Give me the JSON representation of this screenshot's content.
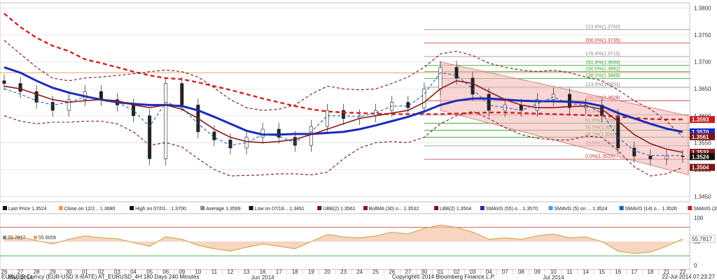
{
  "chart_data": {
    "type": "line",
    "price_axis": {
      "ylim": [
        1.344,
        1.381
      ],
      "ticks": [
        "1.3450",
        "1.3500",
        "1.3550",
        "1.3600",
        "1.3650",
        "1.3700",
        "1.3750",
        "1.3800"
      ]
    },
    "x_categories": [
      "26",
      "27",
      "28",
      "29",
      "30",
      "01",
      "02",
      "03",
      "04",
      "05",
      "06",
      "09",
      "10",
      "11",
      "12",
      "13",
      "16",
      "17",
      "18",
      "19",
      "20",
      "23",
      "24",
      "25",
      "26",
      "27",
      "30",
      "01",
      "02",
      "03",
      "04",
      "07",
      "08",
      "09",
      "10",
      "11",
      "14",
      "15",
      "16",
      "17",
      "18",
      "21",
      "22"
    ],
    "month_labels": [
      {
        "label": "May 2014",
        "at": "27"
      },
      {
        "label": "Jun 2014",
        "at": "16"
      },
      {
        "label": "Jul 2014",
        "at": "10"
      }
    ],
    "candles_close": [
      1.366,
      1.3645,
      1.3625,
      1.361,
      1.363,
      1.3645,
      1.363,
      1.362,
      1.36,
      1.352,
      1.366,
      1.362,
      1.357,
      1.3555,
      1.354,
      1.356,
      1.3575,
      1.356,
      1.3545,
      1.358,
      1.361,
      1.3595,
      1.36,
      1.361,
      1.3625,
      1.3615,
      1.365,
      1.369,
      1.367,
      1.364,
      1.361,
      1.362,
      1.361,
      1.363,
      1.364,
      1.3615,
      1.362,
      1.36,
      1.354,
      1.3525,
      1.352,
      1.3525,
      1.3524
    ],
    "series": [
      {
        "name": "SMAVG (200)",
        "color": "#d42020",
        "style": "dashed",
        "values": [
          1.379,
          1.3765,
          1.3745,
          1.373,
          1.372,
          1.3705,
          1.3698,
          1.369,
          1.3682,
          1.3675,
          1.367,
          1.3668,
          1.3662,
          1.3655,
          1.3648,
          1.364,
          1.3632,
          1.3625,
          1.3618,
          1.3612,
          1.3608,
          1.3606,
          1.3605,
          1.3604,
          1.3603,
          1.3603,
          1.3603,
          1.3603,
          1.3604,
          1.3605,
          1.3606,
          1.3606,
          1.3605,
          1.3604,
          1.3603,
          1.3602,
          1.3601,
          1.36,
          1.3598,
          1.3596,
          1.3594,
          1.3593,
          1.3593
        ]
      },
      {
        "name": "SMAVG (55)",
        "color": "#1a2bb8",
        "style": "solid",
        "values": [
          1.369,
          1.368,
          1.3665,
          1.3652,
          1.3643,
          1.3636,
          1.363,
          1.3625,
          1.3622,
          1.362,
          1.362,
          1.3618,
          1.361,
          1.3598,
          1.3585,
          1.3572,
          1.3565,
          1.3565,
          1.3566,
          1.3566,
          1.3568,
          1.357,
          1.3575,
          1.3582,
          1.359,
          1.3598,
          1.3608,
          1.362,
          1.3628,
          1.3632,
          1.3632,
          1.363,
          1.3628,
          1.3627,
          1.3627,
          1.3626,
          1.3624,
          1.3618,
          1.3605,
          1.3595,
          1.3585,
          1.3576,
          1.357
        ]
      },
      {
        "name": "BollMA (30)",
        "color": "#8a1a1a",
        "style": "solid",
        "values": [
          1.3655,
          1.365,
          1.364,
          1.363,
          1.3625,
          1.3628,
          1.363,
          1.3628,
          1.362,
          1.3615,
          1.362,
          1.3612,
          1.3595,
          1.3575,
          1.356,
          1.3552,
          1.355,
          1.3552,
          1.3556,
          1.3565,
          1.3575,
          1.3585,
          1.3595,
          1.36,
          1.3605,
          1.361,
          1.3625,
          1.365,
          1.3665,
          1.366,
          1.3645,
          1.363,
          1.362,
          1.3615,
          1.3615,
          1.3617,
          1.3618,
          1.3612,
          1.359,
          1.3565,
          1.3548,
          1.3538,
          1.3532
        ]
      },
      {
        "name": "SMAVG (14)",
        "color": "#2060b0",
        "style": "dashed",
        "values": [
          1.365,
          1.364,
          1.3628,
          1.362,
          1.3625,
          1.3635,
          1.3632,
          1.3625,
          1.361,
          1.358,
          1.3625,
          1.3615,
          1.3585,
          1.356,
          1.3545,
          1.355,
          1.3565,
          1.3562,
          1.355,
          1.357,
          1.36,
          1.36,
          1.3598,
          1.3605,
          1.3618,
          1.3618,
          1.364,
          1.368,
          1.3675,
          1.365,
          1.362,
          1.3615,
          1.361,
          1.3622,
          1.3635,
          1.3622,
          1.362,
          1.3605,
          1.356,
          1.3535,
          1.3526,
          1.3526,
          1.3526
        ]
      },
      {
        "name": "UBB(2)",
        "color": "#7a1515",
        "style": "dashed",
        "values": [
          1.374,
          1.3715,
          1.369,
          1.367,
          1.3665,
          1.367,
          1.3672,
          1.3675,
          1.3678,
          1.3682,
          1.3685,
          1.3682,
          1.3672,
          1.3652,
          1.363,
          1.3615,
          1.361,
          1.3612,
          1.362,
          1.364,
          1.3655,
          1.365,
          1.3648,
          1.365,
          1.366,
          1.3672,
          1.369,
          1.3715,
          1.372,
          1.3712,
          1.3698,
          1.369,
          1.3685,
          1.3682,
          1.3685,
          1.368,
          1.3672,
          1.3665,
          1.3648,
          1.3628,
          1.3612,
          1.359,
          1.3561
        ]
      },
      {
        "name": "LBB(2)",
        "color": "#7a1515",
        "style": "dashed",
        "values": [
          1.36,
          1.359,
          1.3585,
          1.3588,
          1.3588,
          1.359,
          1.359,
          1.3585,
          1.357,
          1.3545,
          1.355,
          1.3542,
          1.352,
          1.35,
          1.3488,
          1.3489,
          1.349,
          1.3492,
          1.3492,
          1.349,
          1.3495,
          1.352,
          1.354,
          1.355,
          1.3552,
          1.355,
          1.356,
          1.3585,
          1.36,
          1.3608,
          1.3595,
          1.3578,
          1.3565,
          1.3558,
          1.3555,
          1.3555,
          1.3562,
          1.356,
          1.3535,
          1.3505,
          1.3488,
          1.3492,
          1.3504
        ]
      }
    ],
    "channel": {
      "color": "#f4b5b5",
      "upper": [
        [
          1.37,
          "01"
        ],
        [
          1.36,
          "22"
        ]
      ],
      "lower": [
        [
          1.361,
          "01"
        ],
        [
          1.349,
          "22"
        ]
      ]
    },
    "fib_levels": [
      {
        "label": "223.6%(1.3760)",
        "value": 1.376,
        "color": "#888888"
      },
      {
        "label": "200.0%(1.3735)",
        "value": 1.3735,
        "color": "#c43030"
      },
      {
        "label": "176.4%(1.3710)",
        "value": 1.371,
        "color": "#888888"
      },
      {
        "label": "161.8%(1.3694)",
        "value": 1.3694,
        "color": "#2ca02c"
      },
      {
        "label": "150.0%(1.3682)",
        "value": 1.3682,
        "color": "#2ca02c"
      },
      {
        "label": "138.2%(1.3669)",
        "value": 1.3669,
        "color": "#2ca02c"
      },
      {
        "label": "123.6%(1.3653)",
        "value": 1.3653,
        "color": "#888888"
      },
      {
        "label": "100.0%(1.3628)",
        "value": 1.3628,
        "color": "#c43030"
      },
      {
        "label": "76.4%(1.3602)",
        "value": 1.3602,
        "color": "#888888"
      },
      {
        "label": "61.8%(1.3586)",
        "value": 1.3586,
        "color": "#2ca02c"
      },
      {
        "label": "50.0%(1.3573)",
        "value": 1.3573,
        "color": "#2ca02c"
      },
      {
        "label": "38.2%(1.3560)",
        "value": 1.356,
        "color": "#2ca02c"
      },
      {
        "label": "23.6%(1.3544)",
        "value": 1.3544,
        "color": "#888888"
      },
      {
        "label": "0.0%(1.3519)",
        "value": 1.3519,
        "color": "#c43030"
      }
    ],
    "orange_line": {
      "value": 1.368,
      "color": "#e8a060"
    },
    "price_badges": [
      {
        "label": "1.3593",
        "value": 1.3593,
        "color": "#c42020"
      },
      {
        "label": "1.3570",
        "value": 1.357,
        "color": "#1a2bb8"
      },
      {
        "label": "1.3561",
        "value": 1.3561,
        "color": "#7a1515"
      },
      {
        "label": "1.3532",
        "value": 1.3532,
        "color": "#8a1a1a"
      },
      {
        "label": "1.3524",
        "value": 1.3524,
        "color": "#111111"
      },
      {
        "label": "1.3504",
        "value": 1.3504,
        "color": "#7a1515"
      }
    ],
    "legend": [
      {
        "text": "Last Price  1.3524",
        "color": "#111111"
      },
      {
        "text": "Close on 12/2...  1.3680",
        "color": "#e8a060"
      },
      {
        "text": "High on 07/01...  1.3700",
        "color": "#111111"
      },
      {
        "text": "Average  1.3599",
        "color": "#888888"
      },
      {
        "text": "Low on 07/18...  1.3491",
        "color": "#111111"
      },
      {
        "text": "UBB(2)  1.3561",
        "color": "#7a1515"
      },
      {
        "text": "BollMA (30) o...  1.3532",
        "color": "#8a1a1a"
      },
      {
        "text": "LBB(2)  1.3504",
        "color": "#7a1515"
      },
      {
        "text": "SMAVG (55) o...  1.3570",
        "color": "#1a2bb8"
      },
      {
        "text": "SMAVG (5) on ...  1.3524",
        "color": "#4aa0e0"
      },
      {
        "text": "SMAVG (14) o...  1.3526",
        "color": "#2060b0"
      },
      {
        "text": "SMAVG (200) ...  1.3593",
        "color": "#c42020"
      }
    ],
    "oscillator": {
      "ylim": [
        0,
        100
      ],
      "ticks": [
        "0",
        "50",
        "100"
      ],
      "upper_band": 80,
      "lower_band": 20,
      "current_label": "55.7817",
      "left_labels": [
        "55.7817",
        "55.8006"
      ],
      "values": [
        55,
        60,
        52,
        45,
        55,
        62,
        58,
        56,
        48,
        40,
        60,
        55,
        42,
        35,
        30,
        38,
        45,
        40,
        35,
        50,
        65,
        60,
        58,
        62,
        70,
        66,
        78,
        85,
        80,
        70,
        55,
        58,
        55,
        62,
        66,
        58,
        60,
        50,
        30,
        25,
        28,
        40,
        55.78
      ]
    }
  },
  "footer": {
    "left": "EURUSD Curncy (EUR-USD X-RATE) AT_EURUSD_4H 180 Days 240 Minutes",
    "center": "Copyright© 2014 Bloomberg Finance L.P.",
    "right": "22-Jul-2014 07:23:27"
  }
}
